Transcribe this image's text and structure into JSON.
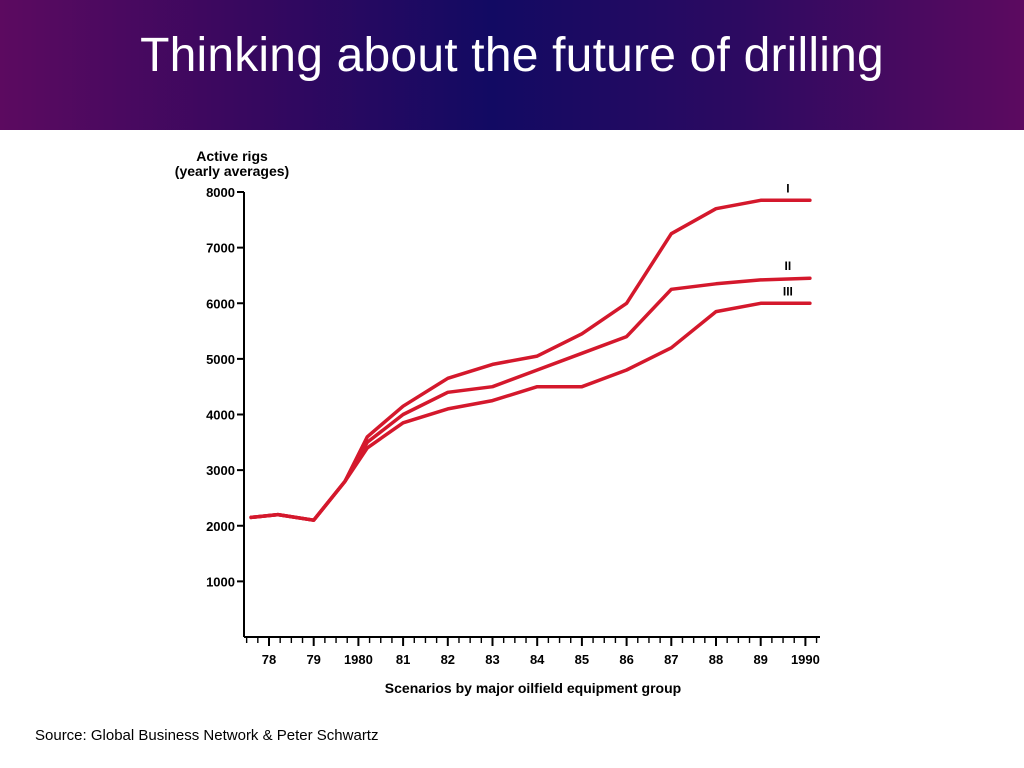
{
  "slide": {
    "title": "Thinking about the future of drilling",
    "source": "Source: Global Business Network & Peter Schwartz",
    "title_bar_colors": [
      "#5c0a60",
      "#120a63"
    ]
  },
  "chart_data": {
    "type": "line",
    "title": "",
    "ylabel_line1": "Active rigs",
    "ylabel_line2": "(yearly averages)",
    "xlabel": "Scenarios by major oilfield equipment group",
    "ylim": [
      0,
      8000
    ],
    "y_ticks": [
      1000,
      2000,
      3000,
      4000,
      5000,
      6000,
      7000,
      8000
    ],
    "y_tick_labels": [
      "1000",
      "2000",
      "3000",
      "4000",
      "5000",
      "6000",
      "7000",
      "8000"
    ],
    "x_ticks": [
      1978,
      1979,
      1980,
      1981,
      1982,
      1983,
      1984,
      1985,
      1986,
      1987,
      1988,
      1989,
      1990
    ],
    "x_tick_labels": [
      "78",
      "79",
      "1980",
      "81",
      "82",
      "83",
      "84",
      "85",
      "86",
      "87",
      "88",
      "89",
      "1990"
    ],
    "line_color": "#d4182c",
    "grid": false,
    "legend": "inline labels at line ends",
    "series": [
      {
        "name": "I",
        "x": [
          1977.6,
          1978.2,
          1979.0,
          1979.7,
          1980.2,
          1981.0,
          1982.0,
          1983.0,
          1984.0,
          1985.0,
          1986.0,
          1987.0,
          1988.0,
          1989.0,
          1990.1
        ],
        "values": [
          2150,
          2200,
          2100,
          2800,
          3600,
          4150,
          4650,
          4900,
          5050,
          5450,
          6000,
          7250,
          7700,
          7850,
          7850
        ]
      },
      {
        "name": "II",
        "x": [
          1977.6,
          1978.2,
          1979.0,
          1979.7,
          1980.2,
          1981.0,
          1982.0,
          1983.0,
          1984.0,
          1985.0,
          1986.0,
          1987.0,
          1988.0,
          1989.0,
          1990.1
        ],
        "values": [
          2150,
          2200,
          2100,
          2800,
          3500,
          4000,
          4400,
          4500,
          4800,
          5100,
          5400,
          6250,
          6350,
          6420,
          6450
        ]
      },
      {
        "name": "III",
        "x": [
          1977.6,
          1978.2,
          1979.0,
          1979.7,
          1980.2,
          1981.0,
          1982.0,
          1983.0,
          1984.0,
          1985.0,
          1986.0,
          1987.0,
          1988.0,
          1989.0,
          1990.1
        ],
        "values": [
          2150,
          2200,
          2100,
          2800,
          3400,
          3850,
          4100,
          4250,
          4500,
          4500,
          4800,
          5200,
          5850,
          6000,
          6000
        ]
      }
    ]
  }
}
